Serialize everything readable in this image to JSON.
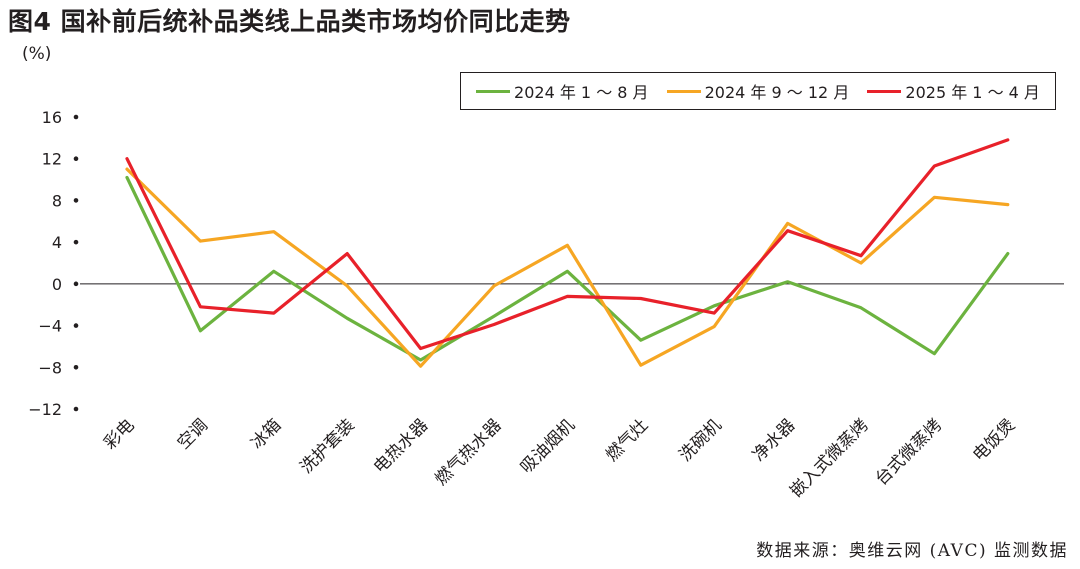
{
  "title": "图4 国补前后统补品类线上品类市场均价同比走势",
  "unit": "(%)",
  "source": "数据来源：奥维云网 (AVC) 监测数据",
  "chart_data": {
    "type": "line",
    "title": "图4 国补前后统补品类线上品类市场均价同比走势",
    "ylabel": "(%)",
    "xlabel": "",
    "ylim": [
      -12,
      16
    ],
    "yticks": [
      16,
      12,
      8,
      4,
      0,
      -4,
      -8,
      -12
    ],
    "ytick_labels": [
      "16",
      "12",
      "8",
      "4",
      "0",
      "−4",
      "−8",
      "−12"
    ],
    "zero_line": true,
    "grid": false,
    "legend_position": "top-right",
    "categories": [
      "彩电",
      "空调",
      "冰箱",
      "洗护套装",
      "电热水器",
      "燃气热水器",
      "吸油烟机",
      "燃气灶",
      "洗碗机",
      "净水器",
      "嵌入式微蒸烤",
      "台式微蒸烤",
      "电饭煲"
    ],
    "series": [
      {
        "name": "2024 年 1 ～ 8 月",
        "color": "#6cb33f",
        "values": [
          10.2,
          -4.5,
          1.2,
          -3.3,
          -7.3,
          -3.1,
          1.2,
          -5.4,
          -2.1,
          0.2,
          -2.3,
          -6.7,
          2.9
        ]
      },
      {
        "name": "2024 年 9 ～ 12 月",
        "color": "#f6a623",
        "values": [
          11.0,
          4.1,
          5.0,
          -0.2,
          -7.9,
          -0.2,
          3.7,
          -7.8,
          -4.1,
          5.8,
          2.0,
          8.3,
          7.6
        ]
      },
      {
        "name": "2025 年 1 ～ 4 月",
        "color": "#e8212a",
        "values": [
          12.0,
          -2.2,
          -2.8,
          2.9,
          -6.2,
          -3.9,
          -1.2,
          -1.4,
          -2.8,
          5.1,
          2.7,
          11.3,
          13.8
        ]
      }
    ]
  }
}
